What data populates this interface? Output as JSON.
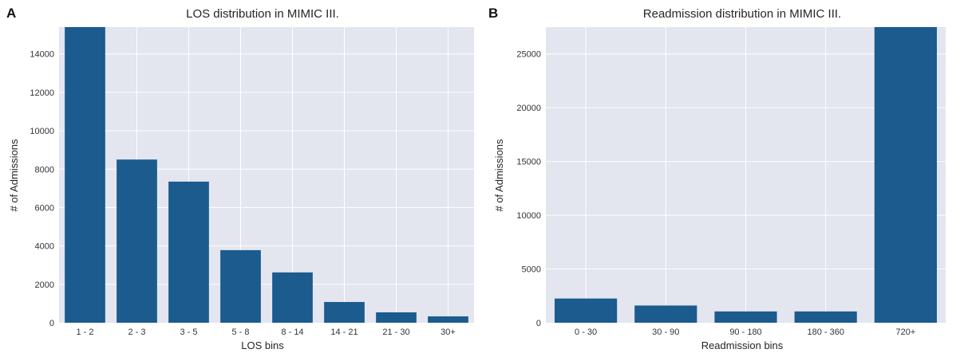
{
  "chart_data": [
    {
      "panel": "A",
      "type": "bar",
      "title": "LOS distribution in MIMIC III.",
      "xlabel": "LOS bins",
      "ylabel": "# of Admissions",
      "categories": [
        "1 - 2",
        "2 - 3",
        "3 - 5",
        "5 - 8",
        "8 - 14",
        "14 - 21",
        "21 - 30",
        "30+"
      ],
      "values": [
        15500,
        8500,
        7350,
        3780,
        2620,
        1080,
        540,
        330
      ],
      "ylim": [
        0,
        15400
      ],
      "yticks": [
        0,
        2000,
        4000,
        6000,
        8000,
        10000,
        12000,
        14000
      ],
      "grid": true,
      "bar_color": "#1b5b8e",
      "background_color": "#e3e5ef"
    },
    {
      "panel": "B",
      "type": "bar",
      "title": "Readmission distribution in MIMIC III.",
      "xlabel": "Readmission bins",
      "ylabel": "# of Admissions",
      "categories": [
        "0 - 30",
        "30 - 90",
        "90 - 180",
        "180 - 360",
        "720+"
      ],
      "values": [
        2250,
        1600,
        1050,
        1050,
        27700
      ],
      "ylim": [
        0,
        27500
      ],
      "yticks": [
        0,
        5000,
        10000,
        15000,
        20000,
        25000
      ],
      "grid": true,
      "bar_color": "#1b5b8e",
      "background_color": "#e3e5ef"
    }
  ]
}
